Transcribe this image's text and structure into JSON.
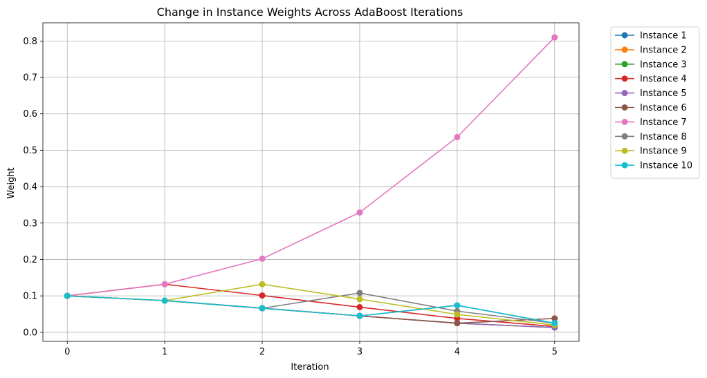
{
  "chart_data": {
    "type": "line",
    "title": "Change in Instance Weights Across AdaBoost Iterations",
    "xlabel": "Iteration",
    "ylabel": "Weight",
    "x": [
      0,
      1,
      2,
      3,
      4,
      5
    ],
    "xlim": [
      -0.25,
      5.25
    ],
    "ylim": [
      -0.025,
      0.85
    ],
    "yticks": [
      0.0,
      0.1,
      0.2,
      0.3,
      0.4,
      0.5,
      0.6,
      0.7,
      0.8
    ],
    "xticks": [
      0,
      1,
      2,
      3,
      4,
      5
    ],
    "grid": true,
    "legend_position": "outside-top-right",
    "series": [
      {
        "name": "Instance 1",
        "color": "#1f77b4",
        "values": [
          0.1,
          0.087,
          0.066,
          0.045,
          0.074,
          0.025
        ]
      },
      {
        "name": "Instance 2",
        "color": "#ff7f0e",
        "values": [
          0.1,
          0.087,
          0.066,
          0.045,
          0.025,
          0.013
        ]
      },
      {
        "name": "Instance 3",
        "color": "#2ca02c",
        "values": [
          0.1,
          0.087,
          0.066,
          0.045,
          0.025,
          0.013
        ]
      },
      {
        "name": "Instance 4",
        "color": "#d62728",
        "values": [
          0.1,
          0.132,
          0.101,
          0.069,
          0.038,
          0.016
        ]
      },
      {
        "name": "Instance 5",
        "color": "#9467bd",
        "values": [
          0.1,
          0.087,
          0.066,
          0.045,
          0.025,
          0.013
        ]
      },
      {
        "name": "Instance 6",
        "color": "#8c564b",
        "values": [
          0.1,
          0.087,
          0.066,
          0.045,
          0.025,
          0.038
        ]
      },
      {
        "name": "Instance 7",
        "color": "#e377c2",
        "values": [
          0.1,
          0.132,
          0.202,
          0.329,
          0.536,
          0.81
        ]
      },
      {
        "name": "Instance 8",
        "color": "#7f7f7f",
        "values": [
          0.1,
          0.087,
          0.066,
          0.108,
          0.058,
          0.025
        ]
      },
      {
        "name": "Instance 9",
        "color": "#bcbd22",
        "values": [
          0.1,
          0.087,
          0.132,
          0.091,
          0.049,
          0.02
        ]
      },
      {
        "name": "Instance 10",
        "color": "#17becf",
        "values": [
          0.1,
          0.087,
          0.066,
          0.045,
          0.074,
          0.025
        ]
      }
    ]
  }
}
